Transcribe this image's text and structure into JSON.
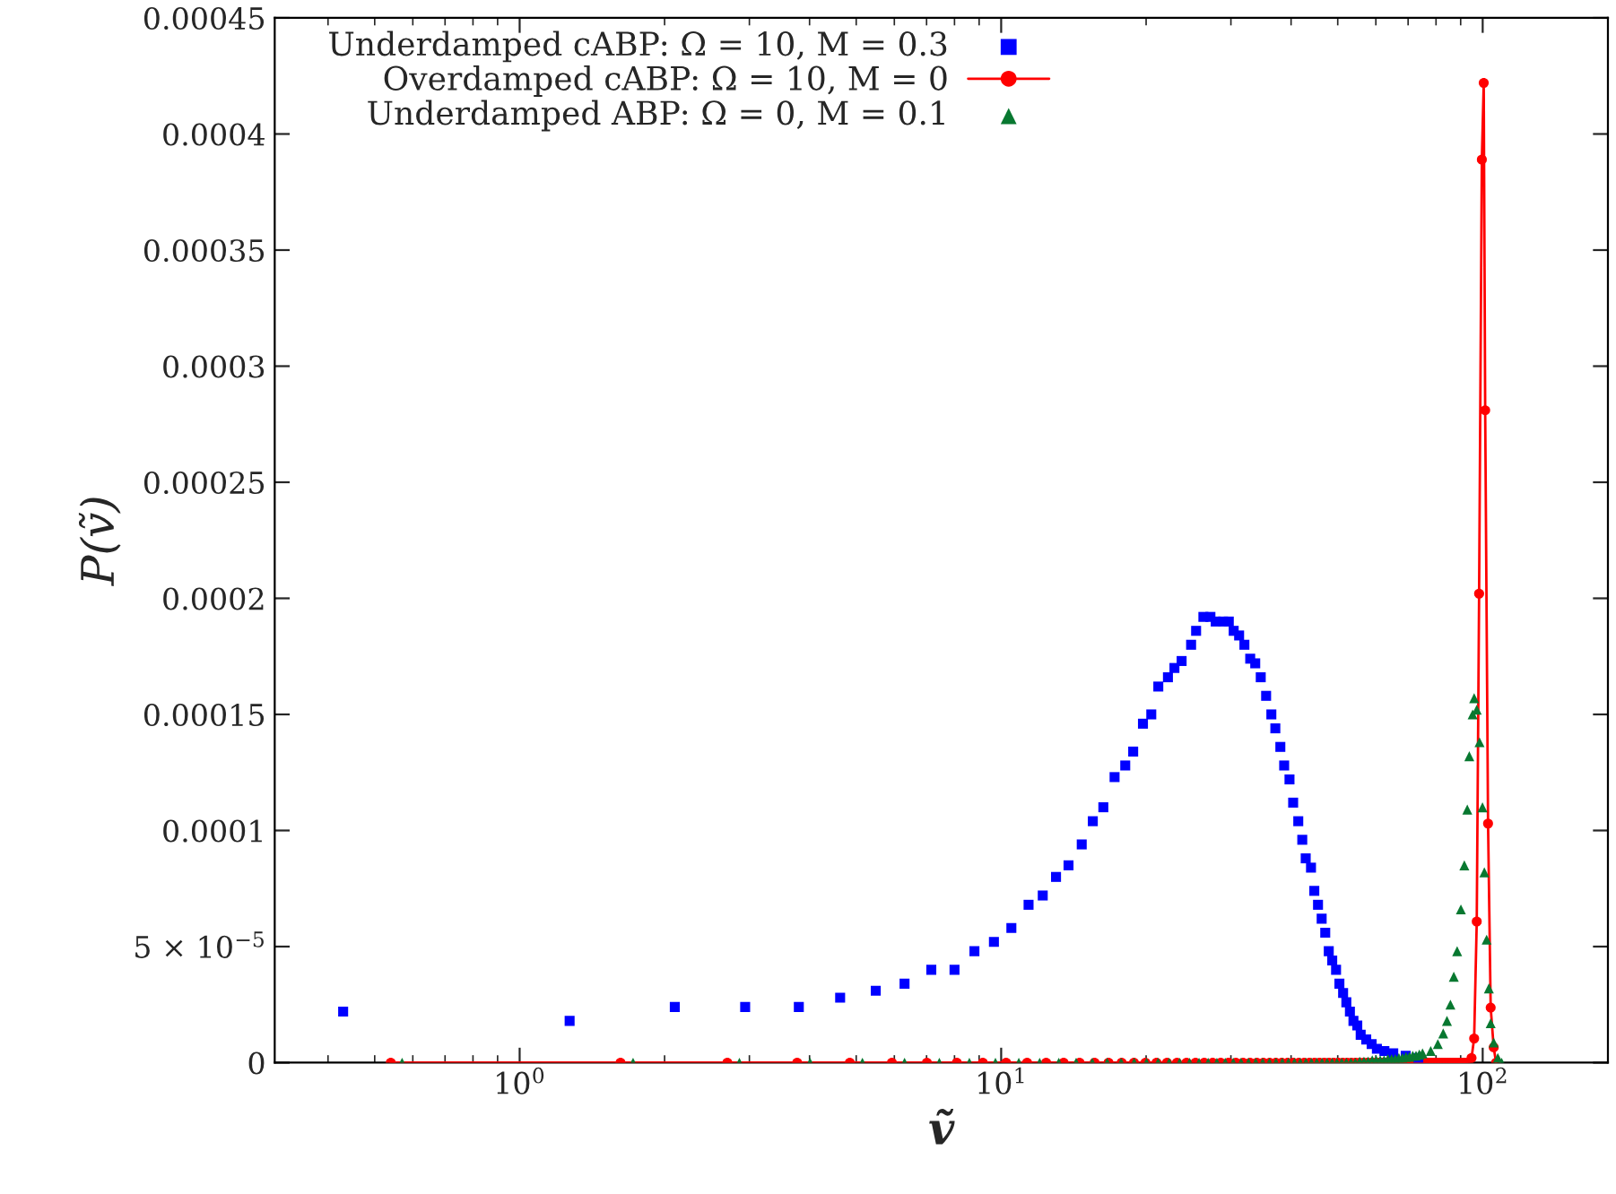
{
  "chart_data": {
    "type": "scatter",
    "xlabel": "ṽ",
    "ylabel": "P(ṽ)",
    "log": "x",
    "grid": false,
    "legend": "top left",
    "xlim": [
      0.31,
      182
    ],
    "xticks": [
      {
        "value": 1,
        "label": "10$^{0}$"
      },
      {
        "value": 10,
        "label": "10$^{1}$"
      },
      {
        "value": 100,
        "label": "10$^{2}$"
      }
    ],
    "ylim": [
      0,
      0.00045
    ],
    "yticks": [
      0,
      {
        "value": 5e-05,
        "label": "5 × 10$^{−5}$"
      },
      0.0001,
      0.00015,
      0.0002,
      0.00025,
      0.0003,
      0.00035,
      0.0004,
      0.00045
    ],
    "series": [
      {
        "name": "Underdamped cABP: Ω = 10, M = 0.3",
        "marker": "square",
        "color": "#0000ff",
        "x": [
          0.43,
          1.27,
          2.1,
          2.94,
          3.8,
          4.63,
          5.49,
          6.3,
          7.16,
          8.0,
          8.8,
          9.66,
          10.5,
          11.4,
          12.2,
          13.0,
          13.8,
          14.7,
          15.5,
          16.3,
          17.2,
          18.1,
          18.8,
          19.7,
          20.5,
          21.2,
          22.2,
          22.9,
          23.7,
          24.8,
          25.4,
          26.3,
          27.2,
          27.9,
          28.9,
          29.7,
          30.4,
          31.2,
          32.0,
          32.9,
          33.7,
          34.6,
          35.5,
          36.4,
          37.1,
          38.0,
          38.7,
          39.7,
          40.4,
          41.4,
          42.2,
          42.9,
          44.0,
          44.7,
          45.5,
          46.3,
          47.1,
          47.9,
          48.7,
          49.6,
          50.4,
          51.3,
          52.1,
          53.0,
          53.9,
          54.9,
          55.8,
          57.3,
          58.8,
          60.3,
          62.5,
          65.2,
          69.2,
          73.5
        ],
        "values": [
          2.2e-05,
          1.8e-05,
          2.4e-05,
          2.4e-05,
          2.4e-05,
          2.8e-05,
          3.1e-05,
          3.4e-05,
          4e-05,
          4e-05,
          4.8e-05,
          5.2e-05,
          5.8e-05,
          6.8e-05,
          7.2e-05,
          8e-05,
          8.5e-05,
          9.4e-05,
          0.000104,
          0.00011,
          0.000123,
          0.000128,
          0.000134,
          0.000146,
          0.00015,
          0.000162,
          0.000166,
          0.00017,
          0.000173,
          0.00018,
          0.000186,
          0.000192,
          0.000192,
          0.00019,
          0.00019,
          0.00019,
          0.000186,
          0.000184,
          0.00018,
          0.000174,
          0.000172,
          0.000166,
          0.000158,
          0.00015,
          0.000144,
          0.000136,
          0.000128,
          0.000122,
          0.000112,
          0.000104,
          9.6e-05,
          8.8e-05,
          8.4e-05,
          7.4e-05,
          6.8e-05,
          6.2e-05,
          5.6e-05,
          4.8e-05,
          4.4e-05,
          4e-05,
          3.4e-05,
          3e-05,
          2.6e-05,
          2.2e-05,
          1.8e-05,
          1.6e-05,
          1.2e-05,
          1e-05,
          8e-06,
          6e-06,
          5e-06,
          4e-06,
          3e-06,
          2e-06
        ]
      },
      {
        "name": "Overdamped cABP: Ω = 10, M = 0",
        "type": "line",
        "marker": "circle",
        "color": "#ff0000",
        "x": [
          0.54,
          1.62,
          2.7,
          3.77,
          4.85,
          5.93,
          7.01,
          8.09,
          9.16,
          10.24,
          11.32,
          12.4,
          13.48,
          14.55,
          15.63,
          16.71,
          17.79,
          18.87,
          19.94,
          21.02,
          22.1,
          23.18,
          24.26,
          25.33,
          26.41,
          27.49,
          28.57,
          29.65,
          30.72,
          31.8,
          32.88,
          33.96,
          35.04,
          36.11,
          37.19,
          38.27,
          39.35,
          40.43,
          41.5,
          42.58,
          43.66,
          44.74,
          45.82,
          46.89,
          47.97,
          49.05,
          50.13,
          51.21,
          52.28,
          53.36,
          54.44,
          55.52,
          56.6,
          57.67,
          58.75,
          59.83,
          60.91,
          61.99,
          63.06,
          64.14,
          65.22,
          66.3,
          67.38,
          68.45,
          69.53,
          70.61,
          71.69,
          72.77,
          73.84,
          74.92,
          76.0,
          77.08,
          78.16,
          79.23,
          80.31,
          81.39,
          82.47,
          83.55,
          84.62,
          85.7,
          86.78,
          87.86,
          88.94,
          90.01,
          91.09,
          92.17,
          93.25,
          94.8,
          96.0,
          97.2,
          98.3,
          99.6,
          100.5,
          101.2,
          102.6,
          103.9,
          105.4,
          106.6
        ],
        "values": [
          0,
          0,
          0,
          0,
          0,
          0,
          0,
          0,
          0,
          0,
          0,
          0,
          0,
          0,
          0,
          0,
          0,
          0,
          0,
          0,
          0,
          0,
          0,
          0,
          0,
          0,
          0,
          0,
          0,
          0,
          0,
          0,
          0,
          0,
          0,
          0,
          0,
          0,
          0,
          0,
          0,
          0,
          0,
          0,
          0,
          0,
          0,
          0,
          0,
          0,
          0,
          0,
          0,
          0,
          0,
          0,
          0,
          0,
          0,
          0,
          0,
          0,
          0,
          0,
          0,
          0,
          0,
          0,
          0,
          0,
          0,
          0,
          0,
          0,
          0,
          0,
          0,
          0,
          0,
          0,
          0,
          0,
          0,
          0,
          0,
          0,
          0,
          2e-06,
          1.04e-05,
          6.08e-05,
          0.000202,
          0.000389,
          0.000422,
          0.000281,
          0.000103,
          2.37e-05,
          6.6e-06,
          0
        ]
      },
      {
        "name": "Underdamped ABP: Ω = 0, M = 0.1",
        "marker": "triangle",
        "color": "#087830",
        "x": [
          0.57,
          1.72,
          2.86,
          4.01,
          5.15,
          6.3,
          7.44,
          8.59,
          9.73,
          10.88,
          12.02,
          13.17,
          14.31,
          15.46,
          16.6,
          17.75,
          18.89,
          20.04,
          21.18,
          22.33,
          23.47,
          24.62,
          25.76,
          26.91,
          28.05,
          29.2,
          30.34,
          31.49,
          32.63,
          33.78,
          34.92,
          36.07,
          37.21,
          38.36,
          39.5,
          40.65,
          41.79,
          42.94,
          44.08,
          45.23,
          46.37,
          47.52,
          48.66,
          49.81,
          50.95,
          52.1,
          53.24,
          54.39,
          55.53,
          56.68,
          57.82,
          58.97,
          60.11,
          61.26,
          62.4,
          63.55,
          64.69,
          65.84,
          66.98,
          68.13,
          69.27,
          70.42,
          71.56,
          72.71,
          73.85,
          75.0,
          78.0,
          80.7,
          82.8,
          84.3,
          85.7,
          87.1,
          88.5,
          90.1,
          91.6,
          92.9,
          93.8,
          95.3,
          96.0,
          97.2,
          98.5,
          99.9,
          100.8,
          101.9,
          103.0,
          103.9,
          105.4,
          107.5,
          109.5
        ],
        "values": [
          0,
          0,
          0,
          0,
          0,
          0,
          0,
          0,
          0,
          0,
          0,
          0,
          0,
          0,
          0,
          0,
          0,
          0,
          0,
          0,
          0,
          0,
          0,
          0,
          0,
          0,
          0,
          0,
          0,
          0,
          0,
          0,
          0,
          0,
          0,
          0,
          0,
          0,
          0,
          0,
          0,
          0,
          0,
          0,
          0,
          0,
          0,
          0,
          5e-07,
          5e-07,
          5e-07,
          1e-06,
          1e-06,
          1e-06,
          1e-06,
          1.5e-06,
          1.5e-06,
          1.5e-06,
          2e-06,
          2e-06,
          2.5e-06,
          2.5e-06,
          3e-06,
          3e-06,
          3.5e-06,
          4e-06,
          5e-06,
          8e-06,
          1.26e-05,
          1.8e-05,
          2.5e-05,
          3.7e-05,
          4.8e-05,
          6.6e-05,
          8.5e-05,
          0.000109,
          0.000132,
          0.00015,
          0.000157,
          0.000152,
          0.000138,
          0.00011,
          8.2e-05,
          5.3e-05,
          3.2e-05,
          1.7e-05,
          8.7e-06,
          2e-06,
          0
        ]
      }
    ]
  }
}
